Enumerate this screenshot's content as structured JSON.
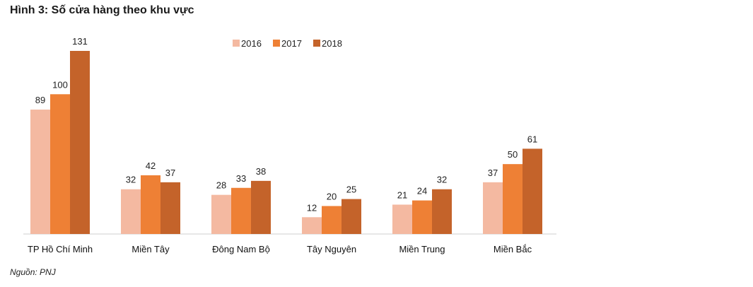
{
  "chart_data": {
    "type": "bar",
    "title": "Hình 3: Số cửa hàng theo khu vực",
    "categories": [
      "TP Hồ Chí Minh",
      "Miền Tây",
      "Đông Nam Bộ",
      "Tây Nguyên",
      "Miền Trung",
      "Miền Bắc"
    ],
    "series": [
      {
        "name": "2016",
        "color": "#f4b9a1",
        "values": [
          89,
          32,
          28,
          12,
          21,
          37
        ]
      },
      {
        "name": "2017",
        "color": "#ee8035",
        "values": [
          100,
          42,
          33,
          20,
          24,
          50
        ]
      },
      {
        "name": "2018",
        "color": "#c4632a",
        "values": [
          131,
          37,
          38,
          25,
          32,
          61
        ]
      }
    ],
    "xlabel": "",
    "ylabel": "",
    "ylim": [
      0,
      131
    ],
    "grid": false,
    "legend": "top-center",
    "source": "Nguồn: PNJ"
  }
}
